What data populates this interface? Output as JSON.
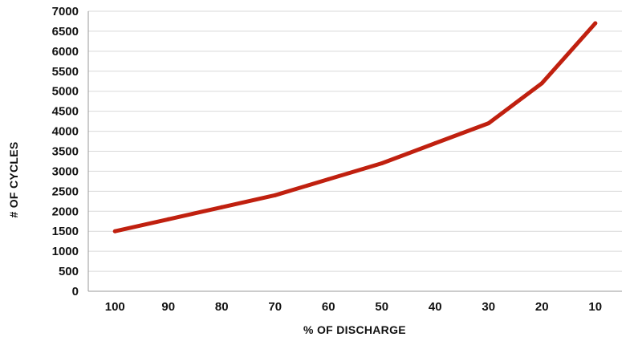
{
  "chart_data": {
    "type": "line",
    "title": "",
    "xlabel": "% OF DISCHARGE",
    "ylabel": "# OF CYCLES",
    "categories": [
      "100",
      "90",
      "80",
      "70",
      "60",
      "50",
      "40",
      "30",
      "20",
      "10"
    ],
    "series": [
      {
        "values": [
          1500,
          1800,
          2100,
          2400,
          2800,
          3200,
          3700,
          4200,
          5200,
          6700
        ]
      }
    ],
    "ylim": [
      0,
      7000
    ],
    "yticks": [
      0,
      500,
      1000,
      1500,
      2000,
      2500,
      3000,
      3500,
      4000,
      4500,
      5000,
      5500,
      6000,
      6500,
      7000
    ],
    "line_color": "#c0200f",
    "grid_color": "#d9d9d9",
    "axis_color": "#9a9a9a",
    "grid": true,
    "legend": "none"
  }
}
